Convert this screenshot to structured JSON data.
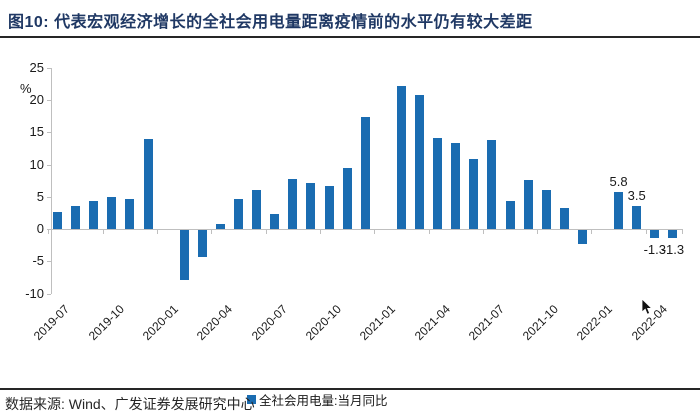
{
  "header": {
    "title": "图10:  代表宏观经济增长的全社会用电量距离疫情前的水平仍有较大差距"
  },
  "chart_data": {
    "type": "bar",
    "title": "代表宏观经济增长的全社会用电量距离疫情前的水平仍有较大差距",
    "ylabel": "%",
    "ylim": [
      -10,
      25
    ],
    "ytick_interval": 5,
    "yticks": [
      "25",
      "20",
      "15",
      "10",
      "5",
      "0",
      "-5",
      "-10"
    ],
    "grid": false,
    "legend_position": "bottom",
    "bar_color": "#1A6CB1",
    "categories": [
      "2019-07",
      "2019-08",
      "2019-09",
      "2019-10",
      "2019-11",
      "2019-12",
      "2020-01",
      "2020-02",
      "2020-03",
      "2020-04",
      "2020-05",
      "2020-06",
      "2020-07",
      "2020-08",
      "2020-09",
      "2020-10",
      "2020-11",
      "2020-12",
      "2021-01",
      "2021-02",
      "2021-03",
      "2021-04",
      "2021-05",
      "2021-06",
      "2021-07",
      "2021-08",
      "2021-09",
      "2021-10",
      "2021-11",
      "2021-12",
      "2022-01",
      "2022-02",
      "2022-03",
      "2022-04",
      "2022-05"
    ],
    "values": [
      2.7,
      3.6,
      4.4,
      5.0,
      4.7,
      13.9,
      null,
      -7.8,
      -4.2,
      0.7,
      4.6,
      6.1,
      2.3,
      7.7,
      7.2,
      6.6,
      9.4,
      17.3,
      null,
      22.2,
      20.8,
      14.1,
      13.4,
      10.8,
      13.8,
      4.3,
      7.6,
      6.0,
      3.2,
      -2.2,
      null,
      5.8,
      3.5,
      -1.3,
      -1.3
    ],
    "xtick_labels": [
      "2019-07",
      "2019-10",
      "2020-01",
      "2020-04",
      "2020-07",
      "2020-10",
      "2021-01",
      "2021-04",
      "2021-07",
      "2021-10",
      "2022-01",
      "2022-04"
    ],
    "xtick_slots": [
      0,
      3,
      6,
      9,
      12,
      15,
      18,
      21,
      24,
      27,
      30,
      33
    ],
    "annotations": [
      {
        "index": 31,
        "text": "5.8",
        "position": "above"
      },
      {
        "index": 32,
        "text": "3.5",
        "position": "above"
      },
      {
        "index": 33,
        "text": "-1.3",
        "position": "below"
      },
      {
        "index": 34,
        "text": "-1.3",
        "position": "below"
      }
    ],
    "legend": {
      "label": "全社会用电量:当月同比",
      "marker_color": "#1A6CB1"
    }
  },
  "footer": {
    "source": "数据来源: Wind、广发证券发展研究中心"
  }
}
